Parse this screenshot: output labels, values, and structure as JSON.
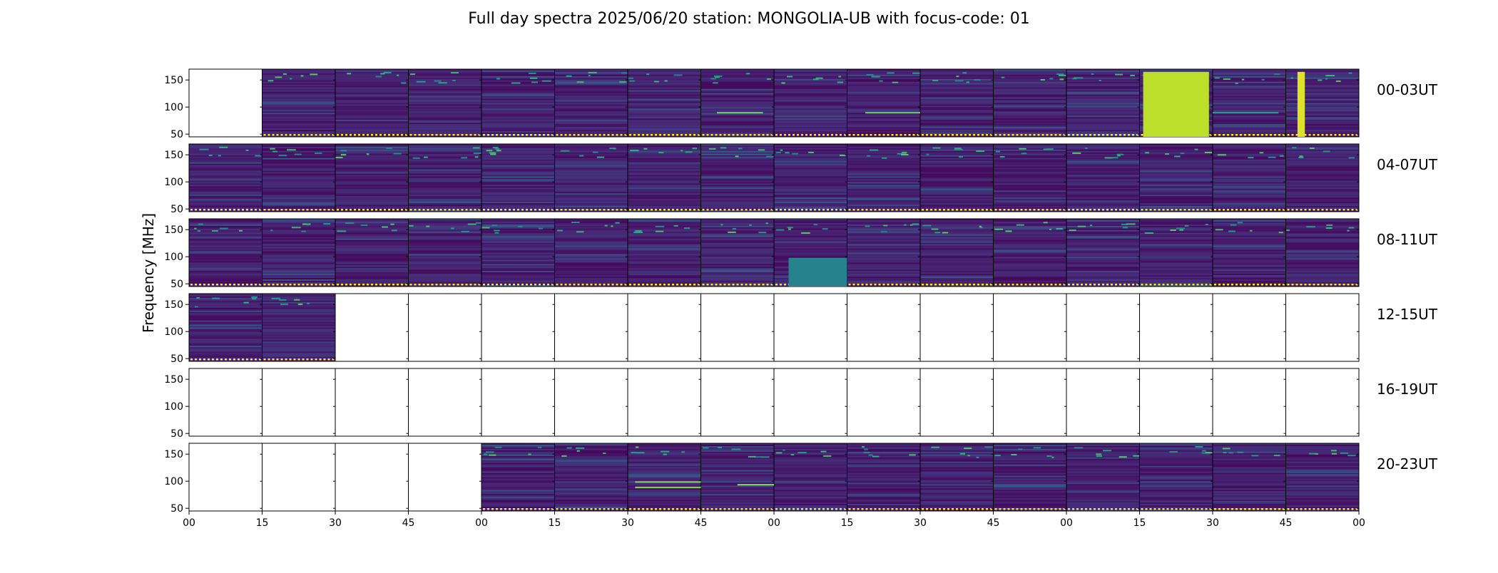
{
  "chart_data": {
    "type": "heatmap",
    "title": "Full day spectra 2025/06/20 station: MONGOLIA-UB with focus-code: 01",
    "ylabel": "Frequency [MHz]",
    "xlabel": "",
    "ylim": [
      45,
      170
    ],
    "y_ticks": [
      "150",
      "100",
      "50"
    ],
    "y_tick_values": [
      150,
      100,
      50
    ],
    "x_ticks": [
      "00",
      "15",
      "30",
      "45",
      "00",
      "15",
      "30",
      "45",
      "00",
      "15",
      "30",
      "45",
      "00",
      "15",
      "30",
      "45",
      "00"
    ],
    "colormap": "viridis",
    "rows": [
      {
        "label": "00-03UT",
        "panels_with_data": [
          false,
          true,
          true,
          true,
          true,
          true,
          true,
          true,
          true,
          true,
          true,
          true,
          true,
          true,
          true,
          true
        ],
        "bright_bands": [
          {
            "panel": 13,
            "level": 0.9,
            "f_min": 45,
            "f_max": 165
          },
          {
            "panel": 15,
            "level": 0.95,
            "f_min": 45,
            "f_max": 165,
            "t_start": 0.16,
            "t_end": 0.26
          },
          {
            "panel": 7,
            "level": 0.75,
            "f_min": 88,
            "f_max": 91,
            "t_start": 0.22,
            "t_end": 0.85
          },
          {
            "panel": 9,
            "level": 0.75,
            "f_min": 88,
            "f_max": 91,
            "t_start": 0.25,
            "t_end": 1.0
          },
          {
            "panel": 14,
            "level": 0.55,
            "f_min": 88,
            "f_max": 91,
            "t_start": 0.0,
            "t_end": 0.9
          }
        ]
      },
      {
        "label": "04-07UT",
        "panels_with_data": [
          true,
          true,
          true,
          true,
          true,
          true,
          true,
          true,
          true,
          true,
          true,
          true,
          true,
          true,
          true,
          true
        ],
        "bright_bands": []
      },
      {
        "label": "08-11UT",
        "panels_with_data": [
          true,
          true,
          true,
          true,
          true,
          true,
          true,
          true,
          true,
          true,
          true,
          true,
          true,
          true,
          true,
          true
        ],
        "bright_bands": [
          {
            "panel": 8,
            "level": 0.45,
            "f_min": 45,
            "f_max": 98,
            "t_start": 0.2,
            "t_end": 1.0
          }
        ]
      },
      {
        "label": "12-15UT",
        "panels_with_data": [
          true,
          true,
          false,
          false,
          false,
          false,
          false,
          false,
          false,
          false,
          false,
          false,
          false,
          false,
          false,
          false
        ],
        "bright_bands": []
      },
      {
        "label": "16-19UT",
        "panels_with_data": [
          false,
          false,
          false,
          false,
          false,
          false,
          false,
          false,
          false,
          false,
          false,
          false,
          false,
          false,
          false,
          false
        ],
        "bright_bands": []
      },
      {
        "label": "20-23UT",
        "panels_with_data": [
          false,
          false,
          false,
          false,
          true,
          true,
          true,
          true,
          true,
          true,
          true,
          true,
          true,
          true,
          true,
          true
        ],
        "bright_bands": [
          {
            "panel": 6,
            "level": 0.8,
            "f_min": 97,
            "f_max": 100,
            "t_start": 0.1,
            "t_end": 1.0
          },
          {
            "panel": 6,
            "level": 0.8,
            "f_min": 87,
            "f_max": 90,
            "t_start": 0.1,
            "t_end": 1.0
          },
          {
            "panel": 7,
            "level": 0.8,
            "f_min": 92,
            "f_max": 95,
            "t_start": 0.5,
            "t_end": 1.0
          }
        ]
      }
    ]
  }
}
